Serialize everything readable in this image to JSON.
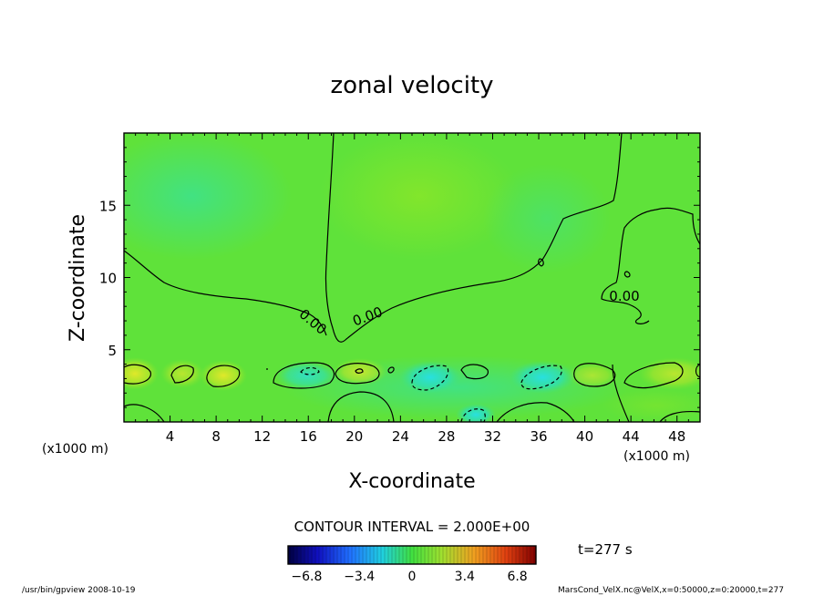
{
  "chart_data": {
    "type": "heatmap",
    "title": "zonal velocity",
    "xlabel": "X-coordinate",
    "ylabel": "Z-coordinate",
    "x_unit_label": "(x1000 m)",
    "y_unit_label": "(x1000 m)",
    "xlim": [
      0,
      50
    ],
    "ylim": [
      0,
      20
    ],
    "x_ticks": [
      4,
      8,
      12,
      16,
      20,
      24,
      28,
      32,
      36,
      40,
      44,
      48
    ],
    "y_ticks": [
      5,
      10,
      15
    ],
    "contour_interval": "CONTOUR INTERVAL = 2.000E+00",
    "contour_labels": [
      "0.00",
      "0.00",
      "0.00"
    ],
    "colorbar": {
      "ticks": [
        -6.8,
        -3.4,
        0,
        3.4,
        6.8
      ],
      "tick_labels": [
        "−6.8",
        "−3.4",
        "0",
        "3.4",
        "6.8"
      ],
      "range": [
        -8,
        8
      ]
    },
    "time_label": "t=277 s",
    "field_summary": {
      "near_zero_background": 0,
      "positive_cells_near_bottom": [
        {
          "x": 1,
          "z": 3.0,
          "value": 2.5
        },
        {
          "x": 5,
          "z": 3.1,
          "value": 1.5
        },
        {
          "x": 9,
          "z": 3.2,
          "value": 2.0
        },
        {
          "x": 20,
          "z": 3.5,
          "value": 1.5
        },
        {
          "x": 40,
          "z": 3.0,
          "value": 1.0
        },
        {
          "x": 48,
          "z": 3.0,
          "value": 1.5
        }
      ],
      "negative_cells_near_bottom": [
        {
          "x": 16,
          "z": 3.2,
          "value": -1.5
        },
        {
          "x": 26,
          "z": 3.0,
          "value": -2.5
        },
        {
          "x": 30,
          "z": 0.6,
          "value": -2.0
        },
        {
          "x": 36,
          "z": 3.0,
          "value": -2.5
        }
      ]
    },
    "grid": false,
    "colormap": "blue-cyan-green-yellow-red"
  },
  "footer": {
    "left": "/usr/bin/gpview   2008-10-19",
    "right": "MarsCond_VelX.nc@VelX,x=0:50000,z=0:20000,t=277"
  },
  "colors": {
    "background_field": "#5fe23a",
    "positive": "#c8e62a",
    "negative": "#2ee0c8"
  }
}
